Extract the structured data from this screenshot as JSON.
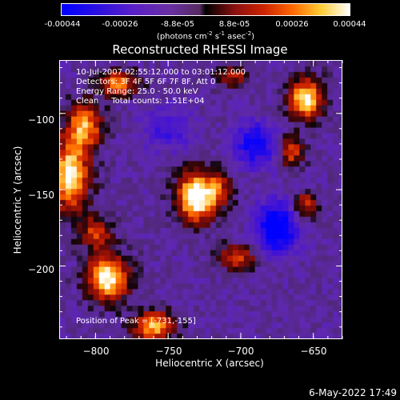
{
  "colorbar": {
    "ticks": [
      "-0.00044",
      "-0.00026",
      "-8.8e-05",
      "8.8e-05",
      "0.00026",
      "0.00044"
    ],
    "unit_prefix": "(photons cm",
    "unit_exp1": "-2",
    "unit_mid": " s",
    "unit_exp2": "-1",
    "unit_mid2": " asec",
    "unit_exp3": "-2",
    "unit_suffix": ")"
  },
  "title": "Reconstructed RHESSI Image",
  "info": {
    "line1": "10-Jul-2007 02:55:12.000 to 03:01:12.000",
    "line2": "Detectors: 3F 4F 5F 6F 7F 8F, Att 0",
    "line3": "Energy Range: 25.0 - 50.0 keV",
    "line4": "Clean     Total counts: 1.51E+04",
    "peak": "Position of Peak = [-731,-155]"
  },
  "datestamp": "6-May-2022 17:49",
  "chart_data": {
    "type": "heatmap",
    "title": "Reconstructed RHESSI Image",
    "xlabel": "Heliocentric X (arcsec)",
    "ylabel": "Heliocentric Y (arcsec)",
    "xlim": [
      -825,
      -630
    ],
    "ylim": [
      -248,
      -65
    ],
    "xticks": [
      -800,
      -750,
      -700,
      -650
    ],
    "xtick_labels": [
      "−800",
      "−750",
      "−700",
      "−650"
    ],
    "yticks": [
      -100,
      -150,
      -200
    ],
    "ytick_labels": [
      "−100",
      "−150",
      "−200"
    ],
    "color_range": [
      -0.00044,
      0.00044
    ],
    "peak": [
      -731,
      -155
    ],
    "sources": [
      {
        "x": -731,
        "y": -155,
        "amp": 1.0,
        "sx": 9,
        "sy": 11
      },
      {
        "x": -818,
        "y": -140,
        "amp": 0.85,
        "sx": 9,
        "sy": 16
      },
      {
        "x": -808,
        "y": -108,
        "amp": 0.7,
        "sx": 8,
        "sy": 10
      },
      {
        "x": -792,
        "y": -208,
        "amp": 0.9,
        "sx": 10,
        "sy": 10
      },
      {
        "x": -800,
        "y": -178,
        "amp": 0.45,
        "sx": 8,
        "sy": 8
      },
      {
        "x": -655,
        "y": -90,
        "amp": 0.85,
        "sx": 8,
        "sy": 9
      },
      {
        "x": -785,
        "y": -80,
        "amp": 0.6,
        "sx": 10,
        "sy": 6
      },
      {
        "x": -702,
        "y": -195,
        "amp": 0.45,
        "sx": 10,
        "sy": 6
      },
      {
        "x": -665,
        "y": -125,
        "amp": 0.5,
        "sx": 6,
        "sy": 7
      },
      {
        "x": -655,
        "y": -160,
        "amp": 0.45,
        "sx": 6,
        "sy": 6
      },
      {
        "x": -760,
        "y": -240,
        "amp": 0.7,
        "sx": 10,
        "sy": 7
      },
      {
        "x": -705,
        "y": -75,
        "amp": 0.35,
        "sx": 8,
        "sy": 6
      },
      {
        "x": -715,
        "y": -150,
        "amp": 0.4,
        "sx": 7,
        "sy": 8
      },
      {
        "x": -690,
        "y": -120,
        "amp": -0.55,
        "sx": 10,
        "sy": 10
      },
      {
        "x": -675,
        "y": -175,
        "amp": -0.7,
        "sx": 10,
        "sy": 12
      },
      {
        "x": -750,
        "y": -110,
        "amp": -0.3,
        "sx": 12,
        "sy": 10
      }
    ]
  }
}
